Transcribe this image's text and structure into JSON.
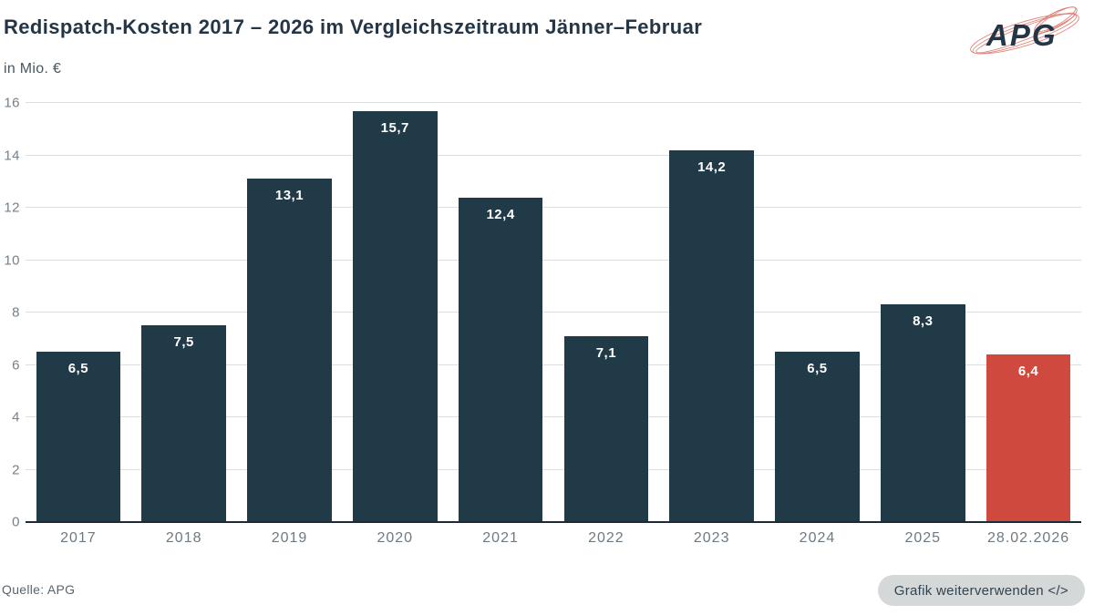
{
  "header": {
    "title": "Redispatch-Kosten 2017 – 2026 im Vergleichszeitraum Jänner–Februar",
    "subtitle": "in Mio. €",
    "logo_text": "APG"
  },
  "chart_data": {
    "type": "bar",
    "title": "Redispatch-Kosten 2017 – 2026 im Vergleichszeitraum Jänner–Februar",
    "ylabel": "in Mio. €",
    "xlabel": "",
    "categories": [
      "2017",
      "2018",
      "2019",
      "2020",
      "2021",
      "2022",
      "2023",
      "2024",
      "2025",
      "28.02.2026"
    ],
    "values": [
      6.5,
      7.5,
      13.1,
      15.7,
      12.4,
      7.1,
      14.2,
      6.5,
      8.3,
      6.4
    ],
    "value_labels": [
      "6,5",
      "7,5",
      "13,1",
      "15,7",
      "12,4",
      "7,1",
      "14,2",
      "6,5",
      "8,3",
      "6,4"
    ],
    "ylim": [
      0,
      16
    ],
    "y_ticks": [
      0,
      2,
      4,
      6,
      8,
      10,
      12,
      14,
      16
    ],
    "grid": true,
    "legend": false,
    "bar_color": "#213A48",
    "highlight_index": 9,
    "highlight_color": "#D0493E"
  },
  "footer": {
    "source": "Quelle: APG",
    "reuse_button": "Grafik weiterverwenden </>"
  }
}
